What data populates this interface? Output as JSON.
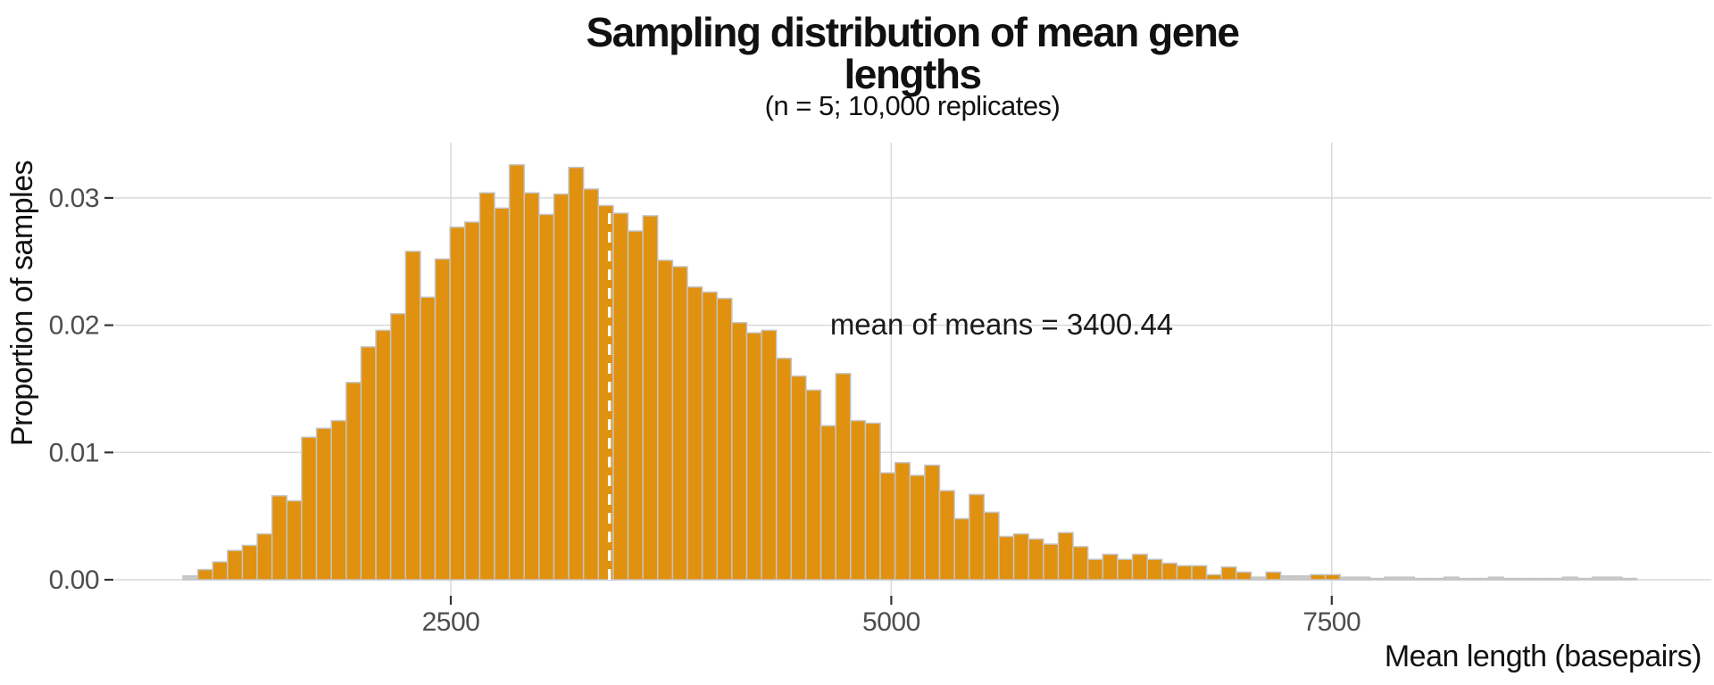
{
  "chart_data": {
    "type": "bar",
    "subtype": "histogram",
    "title": "Sampling distribution of mean gene lengths",
    "title_lines": [
      "Sampling distribution of mean gene",
      "lengths"
    ],
    "subtitle": "(n = 5; 10,000 replicates)",
    "xlabel": "Mean length (basepairs)",
    "ylabel": "Proportion of samples",
    "annotation": "mean of means = 3400.44",
    "mean_of_means": 3400.44,
    "x_ticks": [
      2500,
      5000,
      7500
    ],
    "y_ticks": [
      0,
      0.01,
      0.02,
      0.03
    ],
    "y_tick_labels": [
      "0.00",
      "0.01",
      "0.02",
      "0.03"
    ],
    "xlim": [
      590,
      9650
    ],
    "ylim": [
      0,
      0.0343
    ],
    "grid": "on",
    "legend": "none",
    "bin_start": 980,
    "bin_width": 84.2,
    "values": [
      0.0003,
      0.0008,
      0.0014,
      0.0023,
      0.0027,
      0.0036,
      0.0066,
      0.0062,
      0.0112,
      0.0119,
      0.0125,
      0.0155,
      0.0183,
      0.0196,
      0.0209,
      0.0258,
      0.0222,
      0.0252,
      0.0277,
      0.0281,
      0.0304,
      0.0292,
      0.0326,
      0.0304,
      0.0287,
      0.0303,
      0.0324,
      0.0307,
      0.0294,
      0.0288,
      0.0274,
      0.0286,
      0.0251,
      0.0246,
      0.023,
      0.0226,
      0.0221,
      0.0202,
      0.0194,
      0.0196,
      0.0174,
      0.016,
      0.0149,
      0.0121,
      0.0162,
      0.0125,
      0.0123,
      0.0084,
      0.0092,
      0.0082,
      0.009,
      0.007,
      0.0048,
      0.0067,
      0.0053,
      0.0034,
      0.0036,
      0.0032,
      0.0028,
      0.0037,
      0.0026,
      0.0016,
      0.002,
      0.0016,
      0.002,
      0.0016,
      0.0013,
      0.0011,
      0.0011,
      0.0004,
      0.001,
      0.0006,
      0.0002,
      0.0006,
      0.0003,
      0.0003,
      0.0004,
      0.0004,
      0.0002,
      0.0002,
      0.0001,
      0.0002,
      0.0002,
      0.0001,
      0.0001,
      0.0002,
      0.0001,
      0.0001,
      0.0002,
      0.0001,
      0.0001,
      0.0001,
      0.0001,
      0.0002,
      0.0001,
      0.0002,
      0.0002,
      0.0001
    ],
    "colors": {
      "bar_fill": "#e0910f",
      "bar_stroke": "#c4c4c4",
      "tail_bar_fill": "#c9c9c9",
      "grid": "#d9d9d9",
      "tick_mark": "#333333",
      "tick_label": "#4d4d4d",
      "text": "#111111",
      "mean_line": "#ffffff"
    }
  }
}
